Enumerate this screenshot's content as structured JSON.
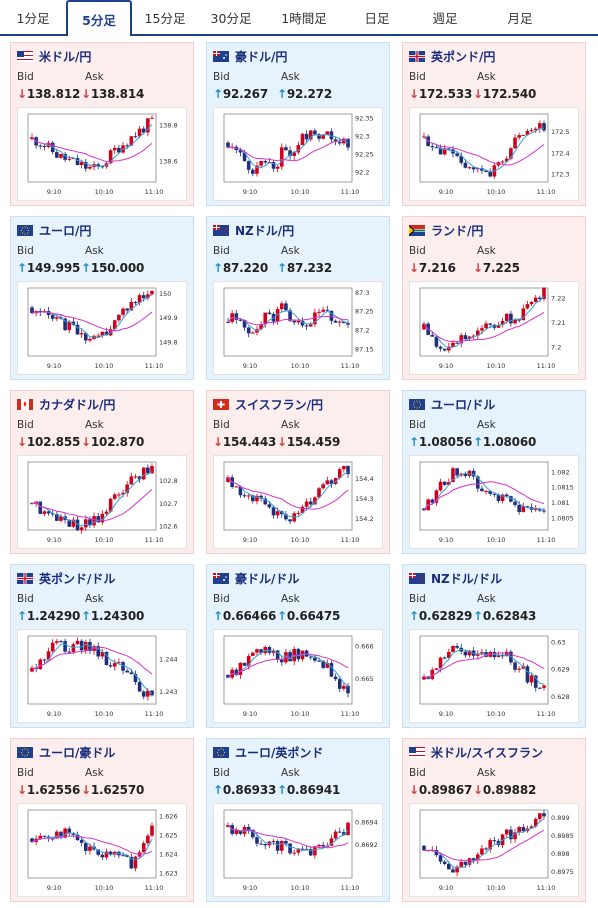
{
  "tabs": [
    "1分足",
    "5分足",
    "15分足",
    "30分足",
    "1時間足",
    "日足",
    "週足",
    "月足"
  ],
  "active_tab": 1,
  "labels": {
    "bid": "Bid",
    "ask": "Ask"
  },
  "colors": {
    "up": "#1b8fd0",
    "down": "#d83a3a",
    "candle_up": "#d0021b",
    "candle_down": "#1f2f7a",
    "ma_short": "#3aa0d8",
    "ma_long": "#d633c9"
  },
  "x_ticks": [
    "9:10",
    "10:10",
    "11:10"
  ],
  "pairs": [
    {
      "name": "米ドル/円",
      "flag": "us",
      "bid": "138.812",
      "ask": "138.814",
      "bid_dir": "down",
      "ask_dir": "down",
      "bg": "pink",
      "yticks": [
        "138.8",
        "138.6"
      ],
      "ylim": [
        138.48,
        138.86
      ],
      "trend": [
        138.72,
        138.7,
        138.66,
        138.62,
        138.6,
        138.58,
        138.56,
        138.55,
        138.6,
        138.66,
        138.7,
        138.74,
        138.78,
        138.82
      ]
    },
    {
      "name": "豪ドル/円",
      "flag": "au",
      "bid": "92.267",
      "ask": "92.272",
      "bid_dir": "up",
      "ask_dir": "up",
      "bg": "blue",
      "yticks": [
        "92.35",
        "92.3",
        "92.25",
        "92.2"
      ],
      "ylim": [
        92.17,
        92.36
      ],
      "trend": [
        92.28,
        92.25,
        92.22,
        92.2,
        92.24,
        92.21,
        92.26,
        92.25,
        92.29,
        92.32,
        92.3,
        92.31,
        92.29,
        92.27
      ]
    },
    {
      "name": "英ポンド/円",
      "flag": "gb",
      "bid": "172.533",
      "ask": "172.540",
      "bid_dir": "down",
      "ask_dir": "down",
      "bg": "pink",
      "yticks": [
        "172.5",
        "172.4",
        "172.3"
      ],
      "ylim": [
        172.26,
        172.58
      ],
      "trend": [
        172.47,
        172.44,
        172.4,
        172.38,
        172.35,
        172.34,
        172.32,
        172.3,
        172.35,
        172.4,
        172.45,
        172.48,
        172.52,
        172.53
      ]
    },
    {
      "name": "ユーロ/円",
      "flag": "eu",
      "bid": "149.995",
      "ask": "150.000",
      "bid_dir": "up",
      "ask_dir": "up",
      "bg": "blue",
      "yticks": [
        "150",
        "149.9",
        "149.8"
      ],
      "ylim": [
        149.74,
        150.02
      ],
      "trend": [
        149.94,
        149.91,
        149.89,
        149.88,
        149.86,
        149.84,
        149.82,
        149.8,
        149.84,
        149.88,
        149.93,
        149.96,
        149.98,
        150.0
      ]
    },
    {
      "name": "NZドル/円",
      "flag": "nz",
      "bid": "87.220",
      "ask": "87.232",
      "bid_dir": "up",
      "ask_dir": "up",
      "bg": "blue",
      "yticks": [
        "87.3",
        "87.25",
        "87.2",
        "87.15"
      ],
      "ylim": [
        87.13,
        87.31
      ],
      "trend": [
        87.22,
        87.24,
        87.2,
        87.18,
        87.25,
        87.23,
        87.27,
        87.22,
        87.2,
        87.22,
        87.25,
        87.24,
        87.22,
        87.22
      ]
    },
    {
      "name": "ランド/円",
      "flag": "za",
      "bid": "7.216",
      "ask": "7.225",
      "bid_dir": "down",
      "ask_dir": "down",
      "bg": "pink",
      "yticks": [
        "7.22",
        "7.21",
        "7.2"
      ],
      "ylim": [
        7.196,
        7.224
      ],
      "trend": [
        7.207,
        7.203,
        7.201,
        7.199,
        7.203,
        7.206,
        7.208,
        7.21,
        7.209,
        7.211,
        7.212,
        7.215,
        7.219,
        7.222
      ]
    },
    {
      "name": "カナダドル/円",
      "flag": "ca",
      "bid": "102.855",
      "ask": "102.870",
      "bid_dir": "down",
      "ask_dir": "down",
      "bg": "pink",
      "yticks": [
        "102.8",
        "102.7",
        "102.6"
      ],
      "ylim": [
        102.58,
        102.88
      ],
      "trend": [
        102.7,
        102.67,
        102.64,
        102.62,
        102.61,
        102.6,
        102.61,
        102.63,
        102.68,
        102.73,
        102.77,
        102.81,
        102.84,
        102.86
      ]
    },
    {
      "name": "スイスフラン/円",
      "flag": "ch",
      "bid": "154.443",
      "ask": "154.459",
      "bid_dir": "down",
      "ask_dir": "down",
      "bg": "pink",
      "yticks": [
        "154.4",
        "154.3",
        "154.2"
      ],
      "ylim": [
        154.14,
        154.48
      ],
      "trend": [
        154.38,
        154.35,
        154.32,
        154.29,
        154.26,
        154.24,
        154.22,
        154.2,
        154.24,
        154.28,
        154.33,
        154.38,
        154.42,
        154.44
      ]
    },
    {
      "name": "ユーロ/ドル",
      "flag": "eu",
      "bid": "1.08056",
      "ask": "1.08060",
      "bid_dir": "up",
      "ask_dir": "up",
      "bg": "blue",
      "yticks": [
        "1.082",
        "1.0815",
        "1.081",
        "1.0805"
      ],
      "ylim": [
        1.0801,
        1.0823
      ],
      "trend": [
        1.0808,
        1.0812,
        1.0816,
        1.0819,
        1.0821,
        1.0818,
        1.0816,
        1.0813,
        1.0811,
        1.081,
        1.0808,
        1.0807,
        1.0806,
        1.0806
      ]
    },
    {
      "name": "英ポンド/ドル",
      "flag": "gb",
      "bid": "1.24290",
      "ask": "1.24300",
      "bid_dir": "up",
      "ask_dir": "up",
      "bg": "blue",
      "yticks": [
        "1.244",
        "1.243"
      ],
      "ylim": [
        1.2426,
        1.2447
      ],
      "trend": [
        1.2436,
        1.244,
        1.2443,
        1.2444,
        1.2442,
        1.2444,
        1.2445,
        1.2442,
        1.244,
        1.2438,
        1.2436,
        1.2433,
        1.243,
        1.2429
      ]
    },
    {
      "name": "豪ドル/ドル",
      "flag": "au",
      "bid": "0.66466",
      "ask": "0.66475",
      "bid_dir": "up",
      "ask_dir": "up",
      "bg": "blue",
      "yticks": [
        "0.666",
        "0.665"
      ],
      "ylim": [
        0.6642,
        0.6663
      ],
      "trend": [
        0.6651,
        0.6653,
        0.6656,
        0.6657,
        0.6658,
        0.6657,
        0.6656,
        0.6657,
        0.6658,
        0.6657,
        0.6656,
        0.6652,
        0.6648,
        0.6647
      ]
    },
    {
      "name": "NZドル/ドル",
      "flag": "nz",
      "bid": "0.62829",
      "ask": "0.62843",
      "bid_dir": "up",
      "ask_dir": "up",
      "bg": "blue",
      "yticks": [
        "0.63",
        "0.629",
        "0.628"
      ],
      "ylim": [
        0.6277,
        0.6302
      ],
      "trend": [
        0.6286,
        0.629,
        0.6294,
        0.6296,
        0.6297,
        0.6295,
        0.6294,
        0.6295,
        0.6296,
        0.6294,
        0.6291,
        0.6288,
        0.6284,
        0.6283
      ]
    },
    {
      "name": "ユーロ/豪ドル",
      "flag": "eu",
      "bid": "1.62556",
      "ask": "1.62570",
      "bid_dir": "down",
      "ask_dir": "down",
      "bg": "pink",
      "yticks": [
        "1.626",
        "1.625",
        "1.624",
        "1.623"
      ],
      "ylim": [
        1.6227,
        1.6263
      ],
      "trend": [
        1.6248,
        1.6246,
        1.625,
        1.6252,
        1.6249,
        1.6245,
        1.6242,
        1.624,
        1.6238,
        1.624,
        1.6236,
        1.6235,
        1.6245,
        1.6256
      ]
    },
    {
      "name": "ユーロ/英ポンド",
      "flag": "eu",
      "bid": "0.86933",
      "ask": "0.86941",
      "bid_dir": "up",
      "ask_dir": "up",
      "bg": "blue",
      "yticks": [
        "0.8694",
        "0.8692"
      ],
      "ylim": [
        0.8689,
        0.8695
      ],
      "trend": [
        0.86935,
        0.86932,
        0.8693,
        0.86926,
        0.86922,
        0.8692,
        0.86918,
        0.86916,
        0.86915,
        0.86912,
        0.86918,
        0.86925,
        0.8693,
        0.86934
      ]
    },
    {
      "name": "米ドル/スイスフラン",
      "flag": "us",
      "bid": "0.89867",
      "ask": "0.89882",
      "bid_dir": "down",
      "ask_dir": "down",
      "bg": "pink",
      "yticks": [
        "0.899",
        "0.8985",
        "0.898",
        "0.8975"
      ],
      "ylim": [
        0.8973,
        0.8992
      ],
      "trend": [
        0.8982,
        0.8979,
        0.8977,
        0.8976,
        0.8977,
        0.8978,
        0.898,
        0.8982,
        0.8983,
        0.8985,
        0.8986,
        0.8988,
        0.8989,
        0.899
      ]
    }
  ]
}
